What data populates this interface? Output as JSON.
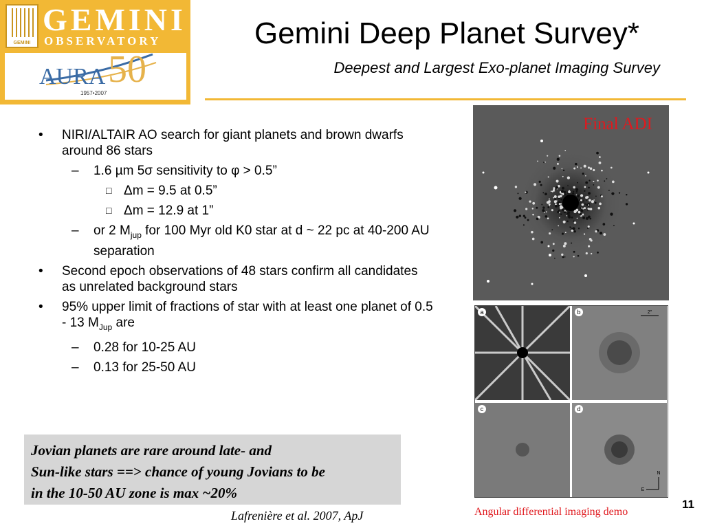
{
  "logo": {
    "gemini": "GEMINI",
    "observatory": "OBSERVATORY",
    "mark": "GEMINI",
    "aura": "AURA",
    "fifty": "50",
    "years": "1957•2007"
  },
  "title": "Gemini Deep Planet Survey*",
  "subtitle": "Deepest and Largest Exo-planet  Imaging Survey",
  "bullets": {
    "b1": "NIRI/ALTAIR AO search for giant planets and brown dwarfs around 86 stars",
    "b1a": "1.6 µm 5σ sensitivity to φ > 0.5”",
    "b1a1": "Δm = 9.5 at 0.5”",
    "b1a2": "Δm = 12.9 at 1”",
    "b1b_pre": "or 2 M",
    "b1b_sub": "jup",
    "b1b_post": " for 100 Myr old K0 star at d ~ 22 pc at 40-200 AU separation",
    "b2": "Second epoch observations of 48 stars confirm all candidates as unrelated background stars",
    "b3_pre": "95% upper limit of fractions of star with at least one planet of 0.5 - 13 M",
    "b3_sub": "Jup",
    "b3_post": " are",
    "b3a": "0.28 for 10-25 AU",
    "b3b": "0.13 for 25-50 AU"
  },
  "markers": {
    "dot": "•",
    "dash": "–",
    "sub": "□"
  },
  "highlight_box": {
    "line1": "Jovian planets are rare around late- and",
    "line2": "Sun-like stars ==> chance of young Jovians to be",
    "line3": "in the 10-50 AU zone is max ~20%"
  },
  "citation": "Lafrenière et al. 2007, ApJ",
  "adi_label": "Final ADI",
  "panels": {
    "a": "a",
    "b": "b",
    "c": "c",
    "d": "d",
    "scale": "2″",
    "north": "N",
    "east": "E"
  },
  "demo_caption": "Angular differential imaging demo",
  "page_number": "11",
  "colors": {
    "accent": "#f2b835",
    "red": "#e0191e",
    "box": "#d6d6d6"
  }
}
